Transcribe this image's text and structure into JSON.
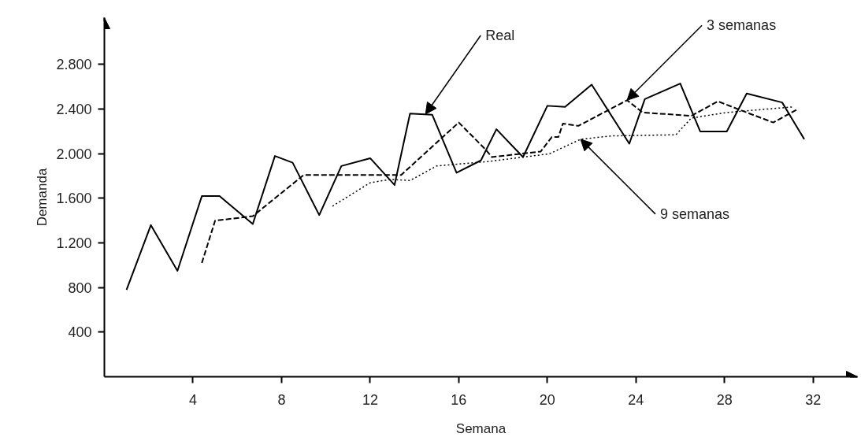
{
  "chart_data": {
    "type": "line",
    "xlabel": "Semana",
    "ylabel": "Demanda",
    "xlim": [
      0,
      34
    ],
    "ylim": [
      0,
      3220
    ],
    "xticks": [
      4,
      8,
      12,
      16,
      20,
      24,
      28,
      32
    ],
    "yticks": [
      {
        "value": 400,
        "label": "400"
      },
      {
        "value": 800,
        "label": "800"
      },
      {
        "value": 1200,
        "label": "1.200"
      },
      {
        "value": 1600,
        "label": "1.600"
      },
      {
        "value": 2000,
        "label": "2.000"
      },
      {
        "value": 2400,
        "label": "2.400"
      },
      {
        "value": 2800,
        "label": "2.800"
      }
    ],
    "grid": false,
    "marker": "none",
    "series": [
      {
        "color": "#000000",
        "line_style": "solid",
        "x": [
          1.0,
          2.1,
          3.3,
          4.4,
          5.2,
          6.7,
          7.7,
          8.5,
          9.7,
          10.7,
          12.0,
          13.1,
          13.8,
          14.8,
          15.9,
          17.0,
          17.7,
          18.9,
          20.0,
          20.8,
          22.0,
          23.7,
          24.4,
          26.0,
          26.9,
          28.1,
          29.0,
          30.6,
          31.6
        ],
        "values": [
          780,
          1360,
          950,
          1620,
          1620,
          1370,
          1980,
          1920,
          1450,
          1890,
          1960,
          1720,
          2360,
          2350,
          1830,
          1940,
          2220,
          1970,
          2430,
          2420,
          2620,
          2090,
          2490,
          2630,
          2200,
          2200,
          2540,
          2460,
          2130
        ]
      },
      {
        "color": "#000000",
        "line_style": "dashed",
        "x": [
          4.4,
          5.0,
          6.7,
          9.0,
          13.4,
          16.0,
          17.2,
          17.5,
          19.7,
          20.2,
          20.5,
          20.7,
          21.4,
          23.6,
          24.3,
          26.5,
          27.7,
          29.0,
          30.2,
          31.3
        ],
        "values": [
          1020,
          1400,
          1440,
          1810,
          1810,
          2280,
          2040,
          1970,
          2020,
          2150,
          2150,
          2270,
          2250,
          2480,
          2370,
          2340,
          2470,
          2370,
          2280,
          2400
        ]
      },
      {
        "color": "#000000",
        "line_style": "dotted",
        "x": [
          10.3,
          12.0,
          12.9,
          13.8,
          15.0,
          17.3,
          18.9,
          20.1,
          21.5,
          22.9,
          25.8,
          26.5,
          28.1,
          31.1
        ],
        "values": [
          1530,
          1740,
          1770,
          1760,
          1890,
          1930,
          1970,
          2000,
          2130,
          2160,
          2170,
          2320,
          2370,
          2420
        ]
      }
    ],
    "annotations": [
      {
        "text": "Real",
        "x": 14.5,
        "y": 2355
      },
      {
        "text": "3 semanas",
        "x": 23.6,
        "y": 2480
      },
      {
        "text": "9 semanas",
        "x": 21.5,
        "y": 2130
      }
    ]
  }
}
